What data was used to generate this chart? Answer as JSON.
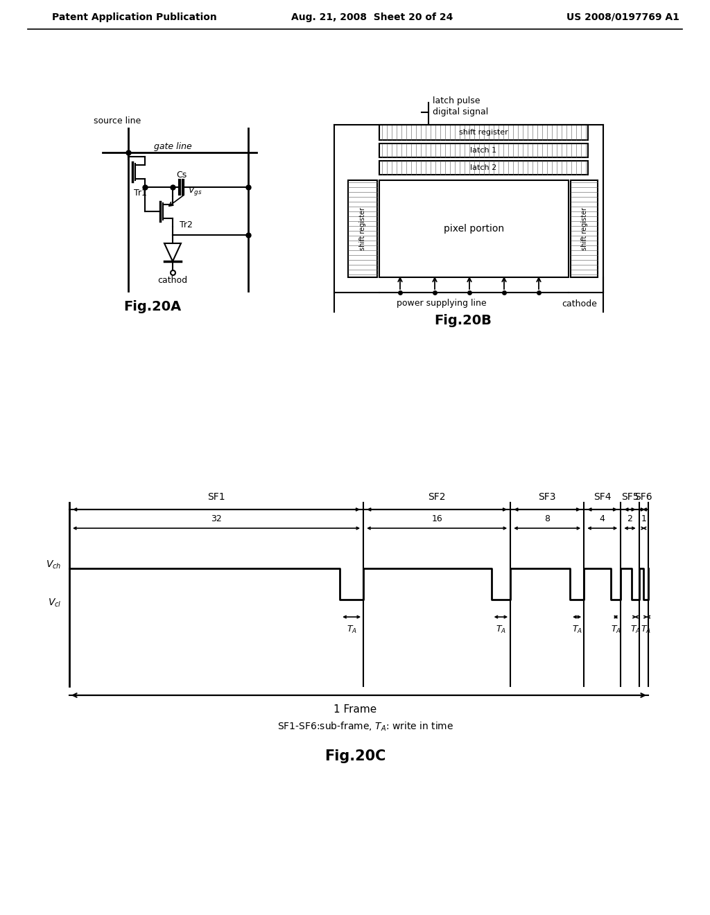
{
  "bg_color": "#ffffff",
  "header_left": "Patent Application Publication",
  "header_center": "Aug. 21, 2008  Sheet 20 of 24",
  "header_right": "US 2008/0197769 A1",
  "fig20a_label": "Fig.20A",
  "fig20b_label": "Fig.20B",
  "fig20c_label": "Fig.20C",
  "frame_label": "1 Frame",
  "sf_labels": [
    "SF1",
    "SF2",
    "SF3",
    "SF4",
    "SF5",
    "SF6"
  ],
  "sf_widths": [
    32,
    16,
    8,
    4,
    2,
    1
  ],
  "text_color": "#000000",
  "line_color": "#000000"
}
